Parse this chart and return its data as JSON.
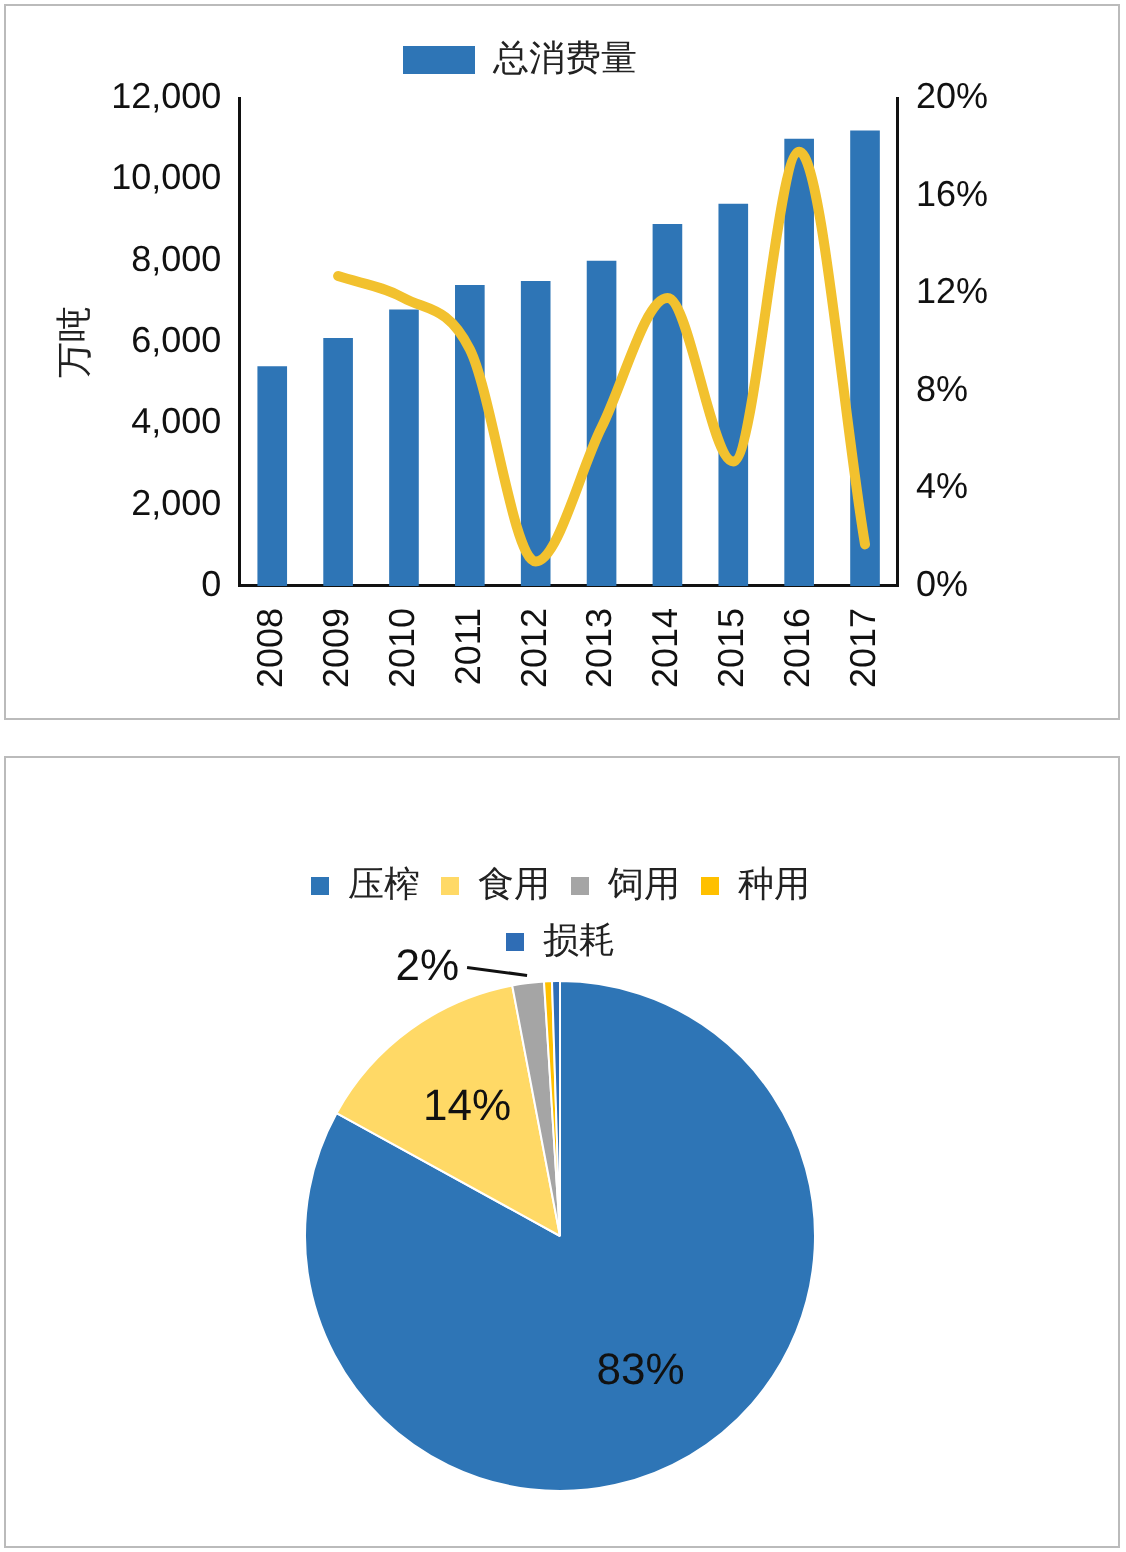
{
  "chart_data": [
    {
      "type": "bar",
      "ylabel": "万吨",
      "categories": [
        "2008",
        "2009",
        "2010",
        "2011",
        "2012",
        "2013",
        "2014",
        "2015",
        "2016",
        "2017"
      ],
      "series": [
        {
          "name": "总消费量",
          "color": "#2e75b6",
          "values": [
            5400,
            6100,
            6800,
            7400,
            7500,
            8000,
            8900,
            9400,
            11000,
            11200
          ]
        },
        {
          "type": "line",
          "axis": "y2",
          "color": "#f2c12e",
          "values": [
            null,
            12.7,
            11.8,
            9.7,
            1.0,
            6.5,
            11.8,
            5.1,
            17.8,
            1.7
          ]
        }
      ],
      "ylim": [
        0,
        12000
      ],
      "yticks": [
        {
          "value": 0,
          "label": "0"
        },
        {
          "value": 2000,
          "label": "2,000"
        },
        {
          "value": 4000,
          "label": "4,000"
        },
        {
          "value": 6000,
          "label": "6,000"
        },
        {
          "value": 8000,
          "label": "8,000"
        },
        {
          "value": 10000,
          "label": "10,000"
        },
        {
          "value": 12000,
          "label": "12,000"
        }
      ],
      "y2lim": [
        0,
        20
      ],
      "y2ticks": [
        {
          "value": 0,
          "label": "0%"
        },
        {
          "value": 4,
          "label": "4%"
        },
        {
          "value": 8,
          "label": "8%"
        },
        {
          "value": 12,
          "label": "12%"
        },
        {
          "value": 16,
          "label": "16%"
        },
        {
          "value": 20,
          "label": "20%"
        }
      ],
      "legend": "top",
      "grid": false
    },
    {
      "type": "pie",
      "categories": [
        "压榨",
        "食用",
        "饲用",
        "种用",
        "损耗"
      ],
      "values": [
        83,
        14,
        2,
        0.5,
        0.5
      ],
      "colors": [
        "#2e75b6",
        "#ffd966",
        "#a5a5a5",
        "#ffc000",
        "#2f6db5"
      ],
      "value_labels": [
        "83%",
        "14%",
        "2%",
        null,
        null
      ],
      "legend": "top"
    }
  ]
}
